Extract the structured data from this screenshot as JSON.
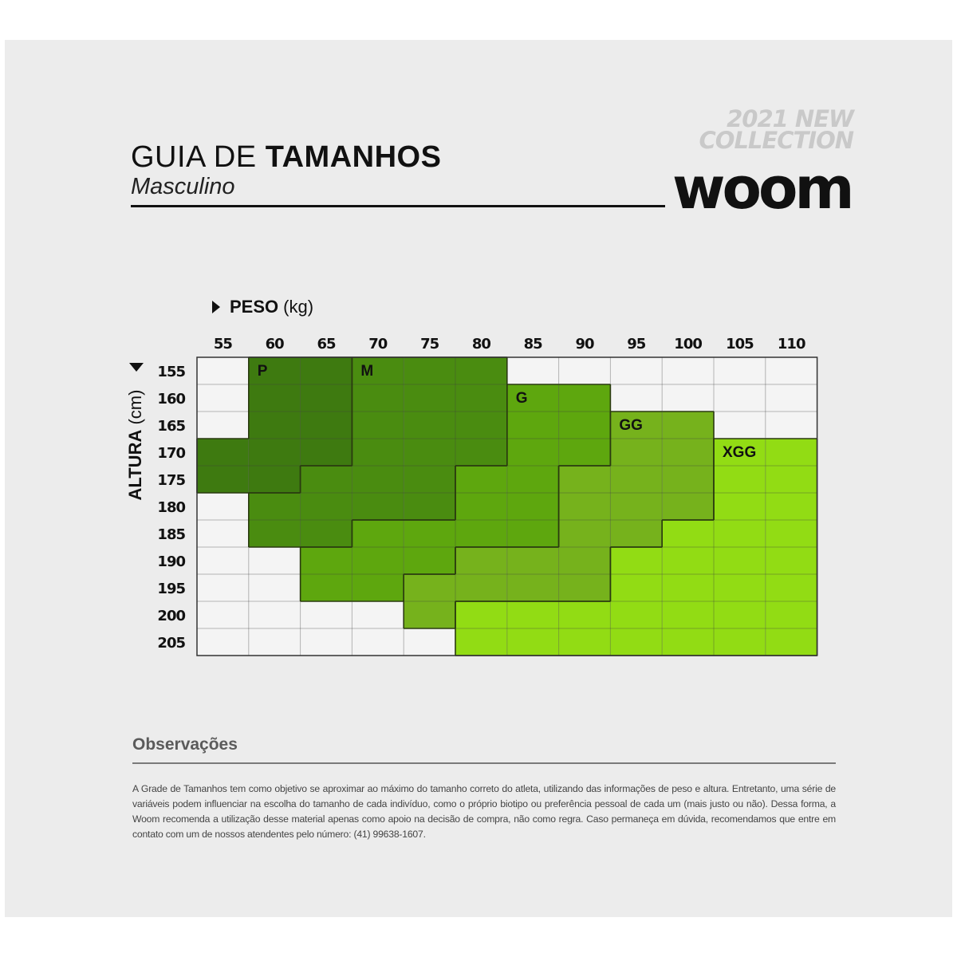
{
  "header": {
    "title_light": "GUIA DE",
    "title_bold": "TAMANHOS",
    "subtitle": "Masculino",
    "collection_line1": "2021 NEW",
    "collection_line2": "COLLECTION",
    "brand": "Woom"
  },
  "chart_data": {
    "type": "heatmap",
    "x_axis": {
      "label_bold": "PESO",
      "label_unit": "(kg)",
      "ticks": [
        55,
        60,
        65,
        70,
        75,
        80,
        85,
        90,
        95,
        100,
        105,
        110
      ]
    },
    "y_axis": {
      "label_bold": "ALTURA",
      "label_unit": "(cm)",
      "ticks": [
        155,
        160,
        165,
        170,
        175,
        180,
        185,
        190,
        195,
        200,
        205
      ]
    },
    "sizes": [
      {
        "label": "P",
        "color": "#3e7a10",
        "cells": [
          [
            155,
            60
          ],
          [
            155,
            65
          ],
          [
            160,
            60
          ],
          [
            160,
            65
          ],
          [
            165,
            60
          ],
          [
            165,
            65
          ],
          [
            170,
            55
          ],
          [
            170,
            60
          ],
          [
            170,
            65
          ],
          [
            175,
            55
          ],
          [
            175,
            60
          ]
        ]
      },
      {
        "label": "M",
        "color": "#4a8c10",
        "cells": [
          [
            155,
            70
          ],
          [
            155,
            75
          ],
          [
            155,
            80
          ],
          [
            160,
            70
          ],
          [
            160,
            75
          ],
          [
            160,
            80
          ],
          [
            165,
            70
          ],
          [
            165,
            75
          ],
          [
            165,
            80
          ],
          [
            170,
            70
          ],
          [
            170,
            75
          ],
          [
            170,
            80
          ],
          [
            175,
            65
          ],
          [
            175,
            70
          ],
          [
            175,
            75
          ],
          [
            180,
            60
          ],
          [
            180,
            65
          ],
          [
            180,
            70
          ],
          [
            180,
            75
          ],
          [
            185,
            60
          ],
          [
            185,
            65
          ]
        ]
      },
      {
        "label": "G",
        "color": "#5ea70e",
        "cells": [
          [
            160,
            85
          ],
          [
            160,
            90
          ],
          [
            165,
            85
          ],
          [
            165,
            90
          ],
          [
            170,
            85
          ],
          [
            170,
            90
          ],
          [
            175,
            80
          ],
          [
            175,
            85
          ],
          [
            180,
            80
          ],
          [
            180,
            85
          ],
          [
            185,
            70
          ],
          [
            185,
            75
          ],
          [
            185,
            80
          ],
          [
            185,
            85
          ],
          [
            190,
            65
          ],
          [
            190,
            70
          ],
          [
            190,
            75
          ],
          [
            195,
            65
          ],
          [
            195,
            70
          ]
        ]
      },
      {
        "label": "GG",
        "color": "#76b21c",
        "cells": [
          [
            165,
            95
          ],
          [
            165,
            100
          ],
          [
            170,
            95
          ],
          [
            170,
            100
          ],
          [
            175,
            90
          ],
          [
            175,
            95
          ],
          [
            175,
            100
          ],
          [
            180,
            90
          ],
          [
            180,
            95
          ],
          [
            180,
            100
          ],
          [
            185,
            90
          ],
          [
            185,
            95
          ],
          [
            190,
            80
          ],
          [
            190,
            85
          ],
          [
            190,
            90
          ],
          [
            195,
            75
          ],
          [
            195,
            80
          ],
          [
            195,
            85
          ],
          [
            195,
            90
          ],
          [
            200,
            75
          ]
        ]
      },
      {
        "label": "XGG",
        "color": "#92dc14",
        "cells": [
          [
            170,
            105
          ],
          [
            170,
            110
          ],
          [
            175,
            105
          ],
          [
            175,
            110
          ],
          [
            180,
            105
          ],
          [
            180,
            110
          ],
          [
            185,
            100
          ],
          [
            185,
            105
          ],
          [
            185,
            110
          ],
          [
            190,
            95
          ],
          [
            190,
            100
          ],
          [
            190,
            105
          ],
          [
            190,
            110
          ],
          [
            195,
            95
          ],
          [
            195,
            100
          ],
          [
            195,
            105
          ],
          [
            195,
            110
          ],
          [
            200,
            80
          ],
          [
            200,
            85
          ],
          [
            200,
            90
          ],
          [
            200,
            95
          ],
          [
            200,
            100
          ],
          [
            200,
            105
          ],
          [
            200,
            110
          ],
          [
            205,
            80
          ],
          [
            205,
            85
          ],
          [
            205,
            90
          ],
          [
            205,
            95
          ],
          [
            205,
            100
          ],
          [
            205,
            105
          ],
          [
            205,
            110
          ]
        ]
      }
    ]
  },
  "observacoes": {
    "title": "Observações",
    "text": "A Grade de Tamanhos tem como objetivo se aproximar ao máximo do tamanho correto do atleta, utilizando das informações de peso e altura. Entretanto, uma série de variáveis podem influenciar na escolha do tamanho de cada indivíduo, como o próprio biotipo ou preferência pessoal de cada um (mais justo ou não). Dessa forma, a Woom recomenda a utilização desse material apenas como apoio na decisão de compra, não como regra. Caso permaneça em dúvida, recomendamos que entre em contato com um de nossos atendentes pelo número: (41) 99638-1607."
  }
}
